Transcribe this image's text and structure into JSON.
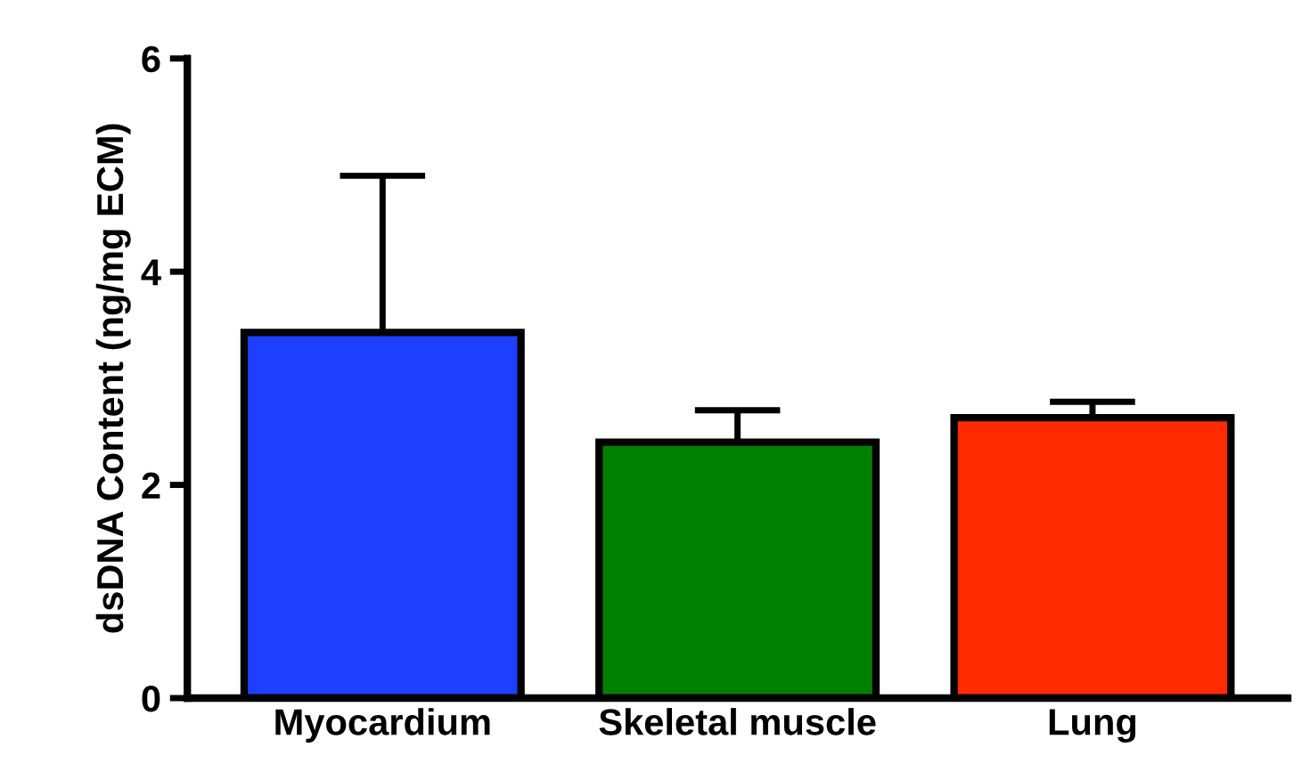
{
  "chart_data": {
    "type": "bar",
    "ylabel": "dsDNA Content (ng/mg ECM)",
    "categories": [
      "Myocardium",
      "Skeletal muscle",
      "Lung"
    ],
    "values": [
      3.43,
      2.4,
      2.63
    ],
    "errors": [
      [
        3.43,
        4.9
      ],
      [
        2.4,
        2.7
      ],
      [
        2.63,
        2.78
      ]
    ],
    "colors": [
      "#1f3fff",
      "#008000",
      "#ff2a00"
    ],
    "ylim": [
      0,
      6
    ],
    "yticks": [
      0,
      2,
      4,
      6
    ],
    "grid": false
  }
}
